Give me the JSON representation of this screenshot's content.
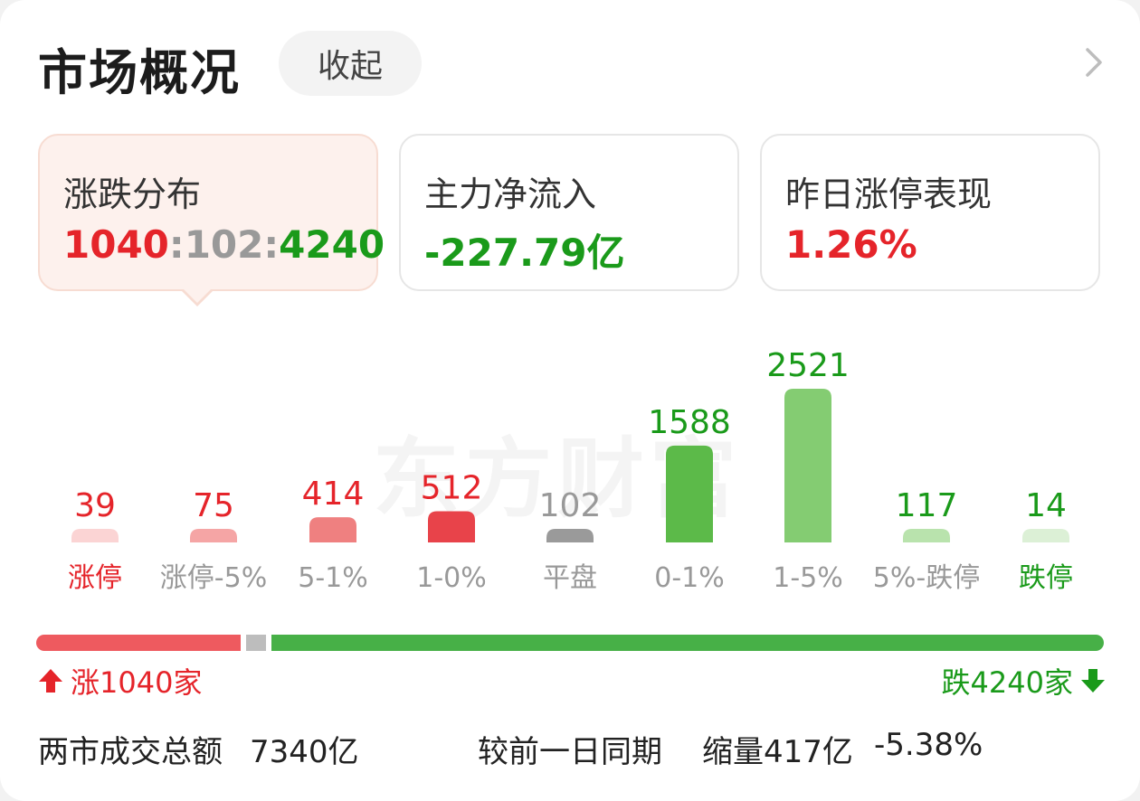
{
  "header": {
    "title": "市场概况",
    "collapse_label": "收起"
  },
  "cards": [
    {
      "title": "涨跌分布",
      "value_up": "1040",
      "sep1": ":",
      "value_flat": "102",
      "sep2": ":",
      "value_down": "4240"
    },
    {
      "title": "主力净流入",
      "value": "-227.79亿"
    },
    {
      "title": "昨日涨停表现",
      "value": "1.26%"
    }
  ],
  "watermark": "东方财富",
  "chart_data": {
    "type": "bar",
    "categories": [
      "涨停",
      "涨停-5%",
      "5-1%",
      "1-0%",
      "平盘",
      "0-1%",
      "1-5%",
      "5%-跌停",
      "跌停"
    ],
    "values": [
      39,
      75,
      414,
      512,
      102,
      1588,
      2521,
      117,
      14
    ],
    "bar_colors": [
      "#fbd4d4",
      "#f5a5a5",
      "#ef8080",
      "#e8434a",
      "#9a9a9a",
      "#5cba49",
      "#84cc72",
      "#b9e3ad",
      "#dcf0d6"
    ],
    "value_colors": [
      "#e5242a",
      "#e5242a",
      "#e5242a",
      "#e5242a",
      "#999999",
      "#1a9a1a",
      "#1a9a1a",
      "#1a9a1a",
      "#1a9a1a"
    ],
    "label_colors": [
      "#e5242a",
      "#999999",
      "#999999",
      "#999999",
      "#999999",
      "#999999",
      "#999999",
      "#999999",
      "#1a9a1a"
    ]
  },
  "updown": {
    "up_count": 1040,
    "flat_count": 102,
    "down_count": 4240,
    "up_label": "涨1040家",
    "down_label": "跌4240家",
    "up_color": "#ee5a5f",
    "flat_color": "#bdbdbd",
    "down_color": "#47b047"
  },
  "footer": {
    "turnover_label": "两市成交总额",
    "turnover_value": "7340亿",
    "compare_label": "较前一日同期",
    "change_amount": "缩量417亿",
    "change_pct": "-5.38%"
  }
}
